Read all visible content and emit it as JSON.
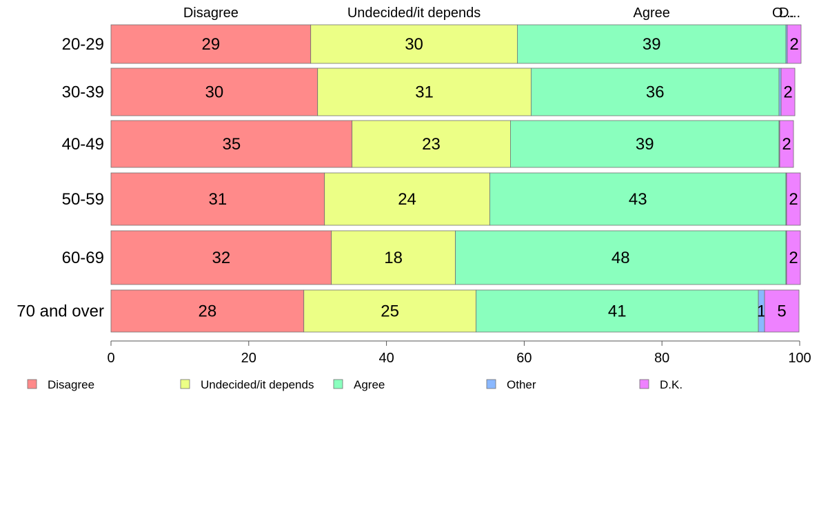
{
  "chart_data": {
    "type": "bar",
    "orientation": "horizontal",
    "stacked": true,
    "categories": [
      "20-29",
      "30-39",
      "40-49",
      "50-59",
      "60-69",
      "70 and over"
    ],
    "series": [
      {
        "name": "Disagree",
        "color": "#ff8a8a",
        "values": [
          29,
          30,
          35,
          31,
          32,
          28
        ],
        "labels": [
          "29",
          "30",
          "35",
          "31",
          "32",
          "28"
        ]
      },
      {
        "name": "Undecided/it depends",
        "color": "#ecff86",
        "values": [
          30,
          31,
          23,
          24,
          18,
          25
        ],
        "labels": [
          "30",
          "31",
          "23",
          "24",
          "18",
          "25"
        ]
      },
      {
        "name": "Agree",
        "color": "#8affbe",
        "values": [
          39,
          36,
          39,
          43,
          48,
          41
        ],
        "labels": [
          "39",
          "36",
          "39",
          "43",
          "48",
          "41"
        ]
      },
      {
        "name": "Other",
        "color": "#8ab8ff",
        "values": [
          0.2,
          0.3,
          0.1,
          0.1,
          0.1,
          0.9
        ],
        "labels": [
          "",
          "",
          "",
          "",
          "",
          "1"
        ]
      },
      {
        "name": "D.K.",
        "color": "#ee82ff",
        "values": [
          2,
          2,
          2,
          2,
          2,
          5
        ],
        "labels": [
          "2",
          "2",
          "2",
          "2",
          "2",
          "5"
        ]
      }
    ],
    "top_labels": [
      "Disagree",
      "Undecided/it depends",
      "Agree",
      "O...",
      "D..."
    ],
    "xlim": [
      0,
      100
    ],
    "xticks": [
      0,
      20,
      40,
      60,
      80,
      100
    ],
    "legend_placement": "bottom",
    "grid": false
  }
}
